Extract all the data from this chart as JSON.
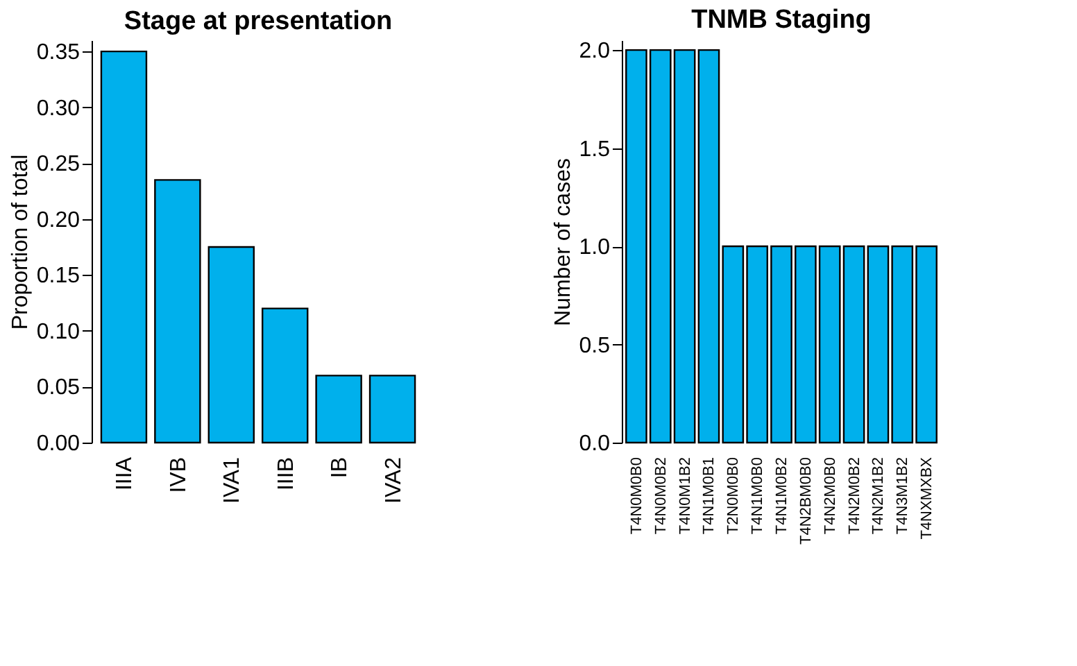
{
  "chart_data": [
    {
      "type": "bar",
      "title": "Stage at presentation",
      "ylabel": "Proportion of total",
      "categories": [
        "IIIA",
        "IVB",
        "IVA1",
        "IIIB",
        "IB",
        "IVA2"
      ],
      "values": [
        0.35,
        0.235,
        0.175,
        0.12,
        0.06,
        0.06
      ],
      "color": "#00b0ec",
      "ylim": [
        0,
        0.36
      ],
      "yticks": [
        {
          "value": 0,
          "label": "0.00"
        },
        0.05,
        {
          "value": 0.1,
          "label": "0.10"
        },
        0.15,
        {
          "value": 0.2,
          "label": "0.20"
        },
        0.25,
        {
          "value": 0.3,
          "label": "0.30"
        },
        0.35
      ],
      "grid": false
    },
    {
      "type": "bar",
      "title": "TNMB Staging",
      "ylabel": "Number of cases",
      "categories": [
        "T4N0M0B0",
        "T4N0M0B2",
        "T4N0M1B2",
        "T4N1M0B1",
        "T2N0M0B0",
        "T4N1M0B0",
        "T4N1M0B2",
        "T4N2BM0B0",
        "T4N2M0B0",
        "T4N2M0B2",
        "T4N2M1B2",
        "T4N3M1B2",
        "T4NXMXBX"
      ],
      "values": [
        2,
        2,
        2,
        2,
        1,
        1,
        1,
        1,
        1,
        1,
        1,
        1,
        1
      ],
      "color": "#00b0ec",
      "ylim": [
        0,
        2.05
      ],
      "yticks": [
        {
          "value": 0,
          "label": "0.0"
        },
        0.5,
        {
          "value": 1,
          "label": "1.0"
        },
        1.5,
        {
          "value": 2,
          "label": "2.0"
        }
      ],
      "grid": false
    }
  ]
}
